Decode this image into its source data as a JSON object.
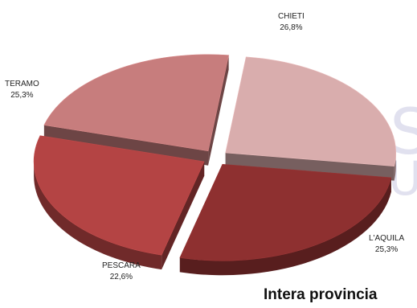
{
  "chart_data": {
    "type": "pie",
    "style": "3d-exploded",
    "title": "Intera provincia",
    "slices": [
      {
        "label": "CHIETI",
        "value": 26.8,
        "value_label": "26,8%",
        "color": "#8e3030"
      },
      {
        "label": "L'AQUILA",
        "value": 25.3,
        "value_label": "25,3%",
        "color": "#b44444"
      },
      {
        "label": "PESCARA",
        "value": 22.6,
        "value_label": "22,6%",
        "color": "#c77d7d"
      },
      {
        "label": "TERAMO",
        "value": 25.3,
        "value_label": "25,3%",
        "color": "#d9adad"
      }
    ]
  },
  "watermark": {
    "line1": "AS",
    "line2": "GU"
  }
}
